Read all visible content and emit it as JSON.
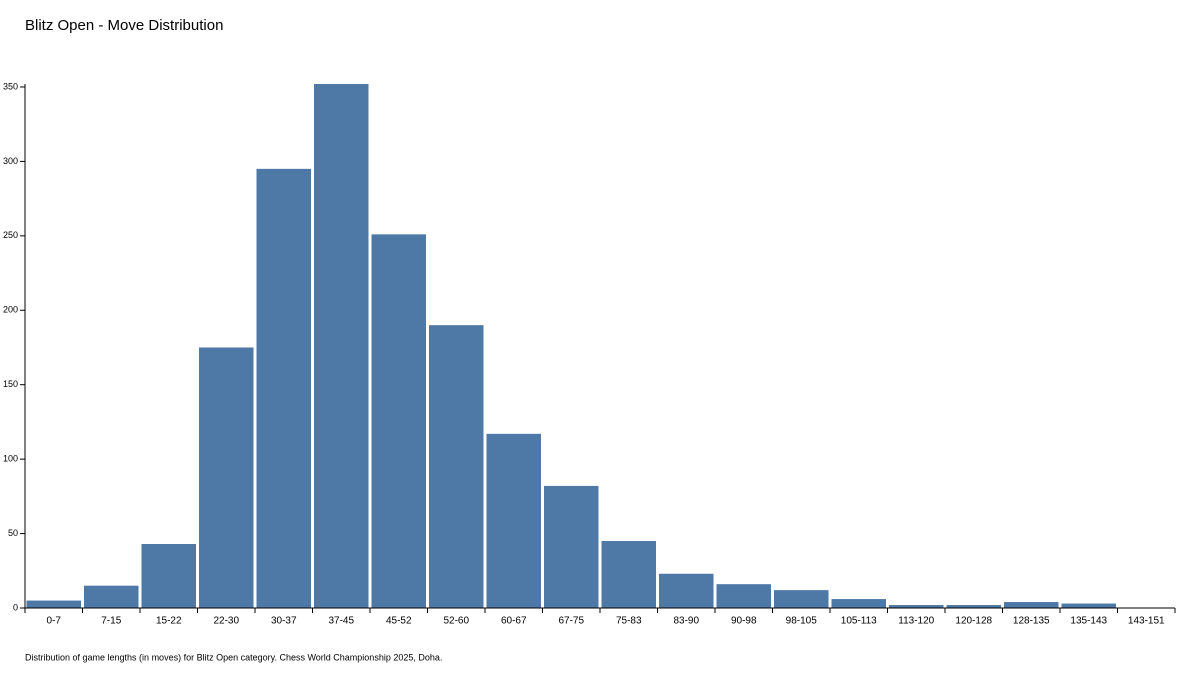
{
  "chart_data": {
    "type": "bar",
    "title": "Blitz Open - Move Distribution",
    "caption": "Distribution of game lengths (in moves) for Blitz Open category. Chess World Championship 2025, Doha.",
    "categories": [
      "0-7",
      "7-15",
      "15-22",
      "22-30",
      "30-37",
      "37-45",
      "45-52",
      "52-60",
      "60-67",
      "67-75",
      "75-83",
      "83-90",
      "90-98",
      "98-105",
      "105-113",
      "113-120",
      "120-128",
      "128-135",
      "135-143",
      "143-151"
    ],
    "values": [
      5,
      15,
      43,
      175,
      295,
      352,
      251,
      190,
      117,
      82,
      45,
      23,
      16,
      12,
      6,
      2,
      2,
      4,
      3,
      0
    ],
    "color": "#4e79a7",
    "ylim": [
      0,
      352
    ],
    "yticks": [
      0,
      50,
      100,
      150,
      200,
      250,
      300,
      350
    ]
  }
}
